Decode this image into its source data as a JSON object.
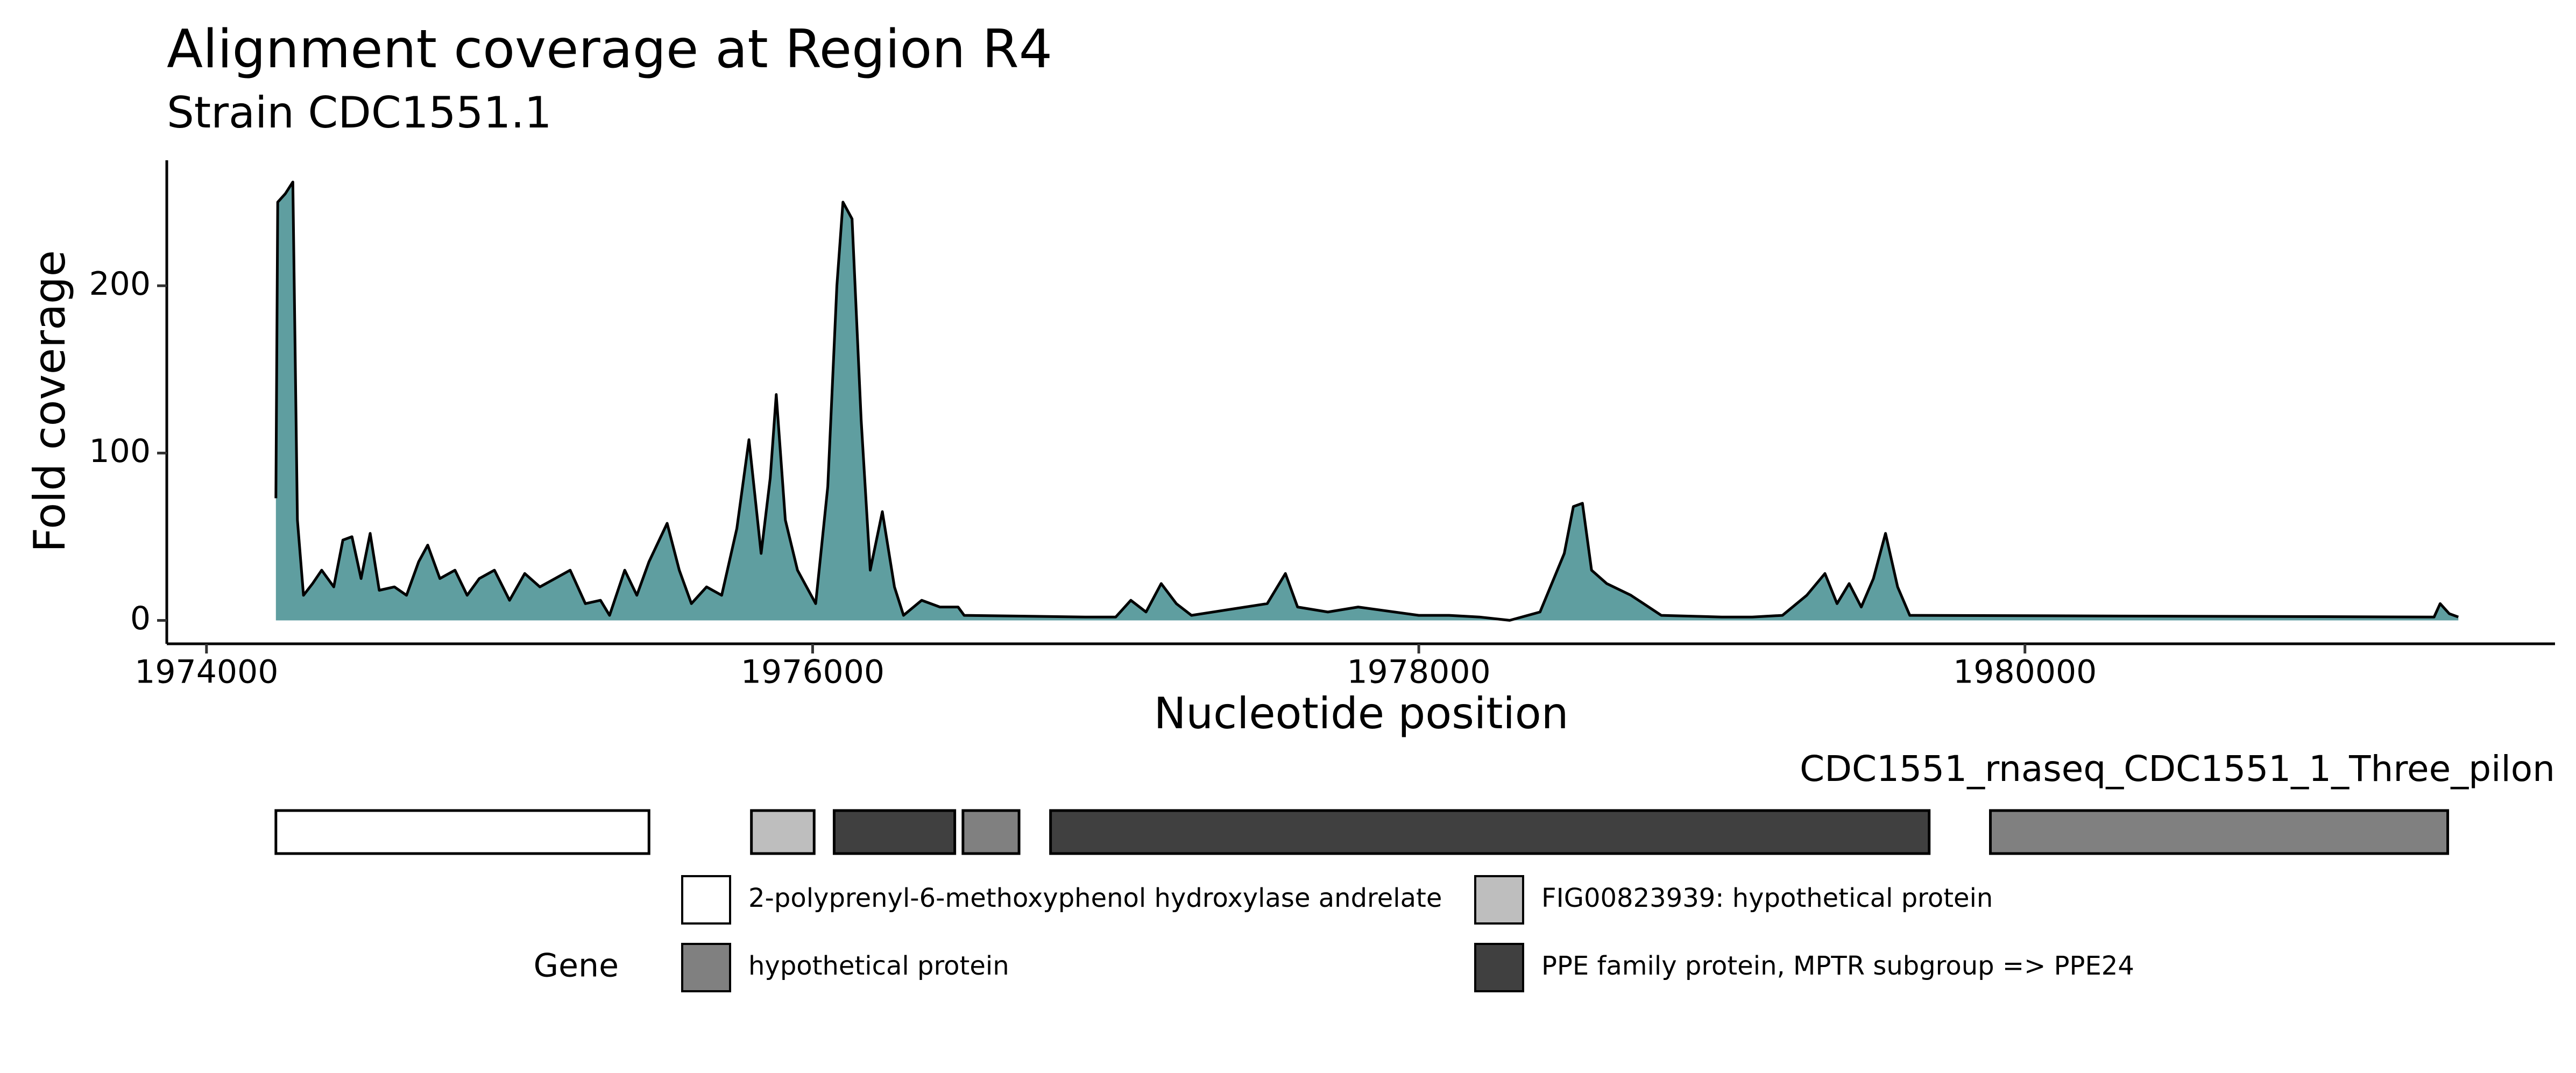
{
  "chart_data": {
    "type": "area",
    "title": "Alignment coverage at Region R4",
    "subtitle": "Strain CDC1551.1",
    "x_label": "Nucleotide position",
    "y_label": "Fold coverage",
    "fill": "#5f9ea0",
    "line_color": "#000000",
    "xlim": [
      1973869,
      1981749
    ],
    "ylim": [
      -14,
      275
    ],
    "xticks": [
      1974000,
      1976000,
      1978000,
      1980000
    ],
    "yticks": [
      0,
      100,
      200
    ],
    "x": [
      1974229,
      1974235,
      1974260,
      1974285,
      1974300,
      1974320,
      1974350,
      1974380,
      1974420,
      1974450,
      1974480,
      1974510,
      1974540,
      1974570,
      1974620,
      1974660,
      1974700,
      1974730,
      1974770,
      1974820,
      1974860,
      1974900,
      1974950,
      1975000,
      1975050,
      1975100,
      1975150,
      1975200,
      1975250,
      1975300,
      1975330,
      1975380,
      1975420,
      1975460,
      1975520,
      1975560,
      1975600,
      1975650,
      1975700,
      1975750,
      1975790,
      1975830,
      1975860,
      1975880,
      1975910,
      1975950,
      1975980,
      1976010,
      1976050,
      1976080,
      1976100,
      1976130,
      1976160,
      1976190,
      1976230,
      1976270,
      1976300,
      1976360,
      1976420,
      1976480,
      1976500,
      1976900,
      1977000,
      1977050,
      1977100,
      1977150,
      1977200,
      1977250,
      1977500,
      1977560,
      1977600,
      1977700,
      1977800,
      1978000,
      1978100,
      1978200,
      1978300,
      1978400,
      1978480,
      1978510,
      1978540,
      1978570,
      1978620,
      1978700,
      1978800,
      1979000,
      1979100,
      1979200,
      1979280,
      1979340,
      1979380,
      1979420,
      1979460,
      1979500,
      1979540,
      1979580,
      1979620,
      1981350,
      1981370,
      1981400,
      1981430
    ],
    "values": [
      73,
      250,
      255,
      262,
      60,
      15,
      22,
      30,
      20,
      48,
      50,
      25,
      52,
      18,
      20,
      15,
      35,
      45,
      25,
      30,
      15,
      25,
      30,
      12,
      28,
      20,
      25,
      30,
      10,
      12,
      3,
      30,
      15,
      35,
      58,
      30,
      10,
      20,
      15,
      55,
      108,
      40,
      85,
      135,
      60,
      30,
      20,
      10,
      80,
      200,
      250,
      240,
      120,
      30,
      65,
      20,
      3,
      12,
      8,
      8,
      3,
      2,
      2,
      12,
      5,
      22,
      10,
      3,
      10,
      28,
      8,
      5,
      8,
      3,
      3,
      2,
      0,
      5,
      40,
      68,
      70,
      30,
      22,
      15,
      3,
      2,
      2,
      3,
      15,
      28,
      10,
      22,
      8,
      25,
      52,
      20,
      3,
      2,
      10,
      4,
      2
    ]
  },
  "gene_track": {
    "label": "CDC1551_rnaseq_CDC1551_1_Three_pilon",
    "genes": [
      {
        "start": 1974229,
        "end": 1975460,
        "color": "#ffffff"
      },
      {
        "start": 1975798,
        "end": 1976005,
        "color": "#bebebe"
      },
      {
        "start": 1976071,
        "end": 1976469,
        "color": "#404040"
      },
      {
        "start": 1976496,
        "end": 1976681,
        "color": "#808080"
      },
      {
        "start": 1976785,
        "end": 1979684,
        "color": "#404040"
      },
      {
        "start": 1979886,
        "end": 1981395,
        "color": "#808080"
      }
    ],
    "legend": {
      "title": "Gene",
      "items": [
        {
          "label": "2-polyprenyl-6-methoxyphenol hydroxylase andrelate",
          "color": "#ffffff"
        },
        {
          "label": "FIG00823939: hypothetical protein",
          "color": "#bebebe"
        },
        {
          "label": "hypothetical protein",
          "color": "#808080"
        },
        {
          "label": "PPE family protein, MPTR subgroup => PPE24",
          "color": "#404040"
        }
      ]
    }
  }
}
